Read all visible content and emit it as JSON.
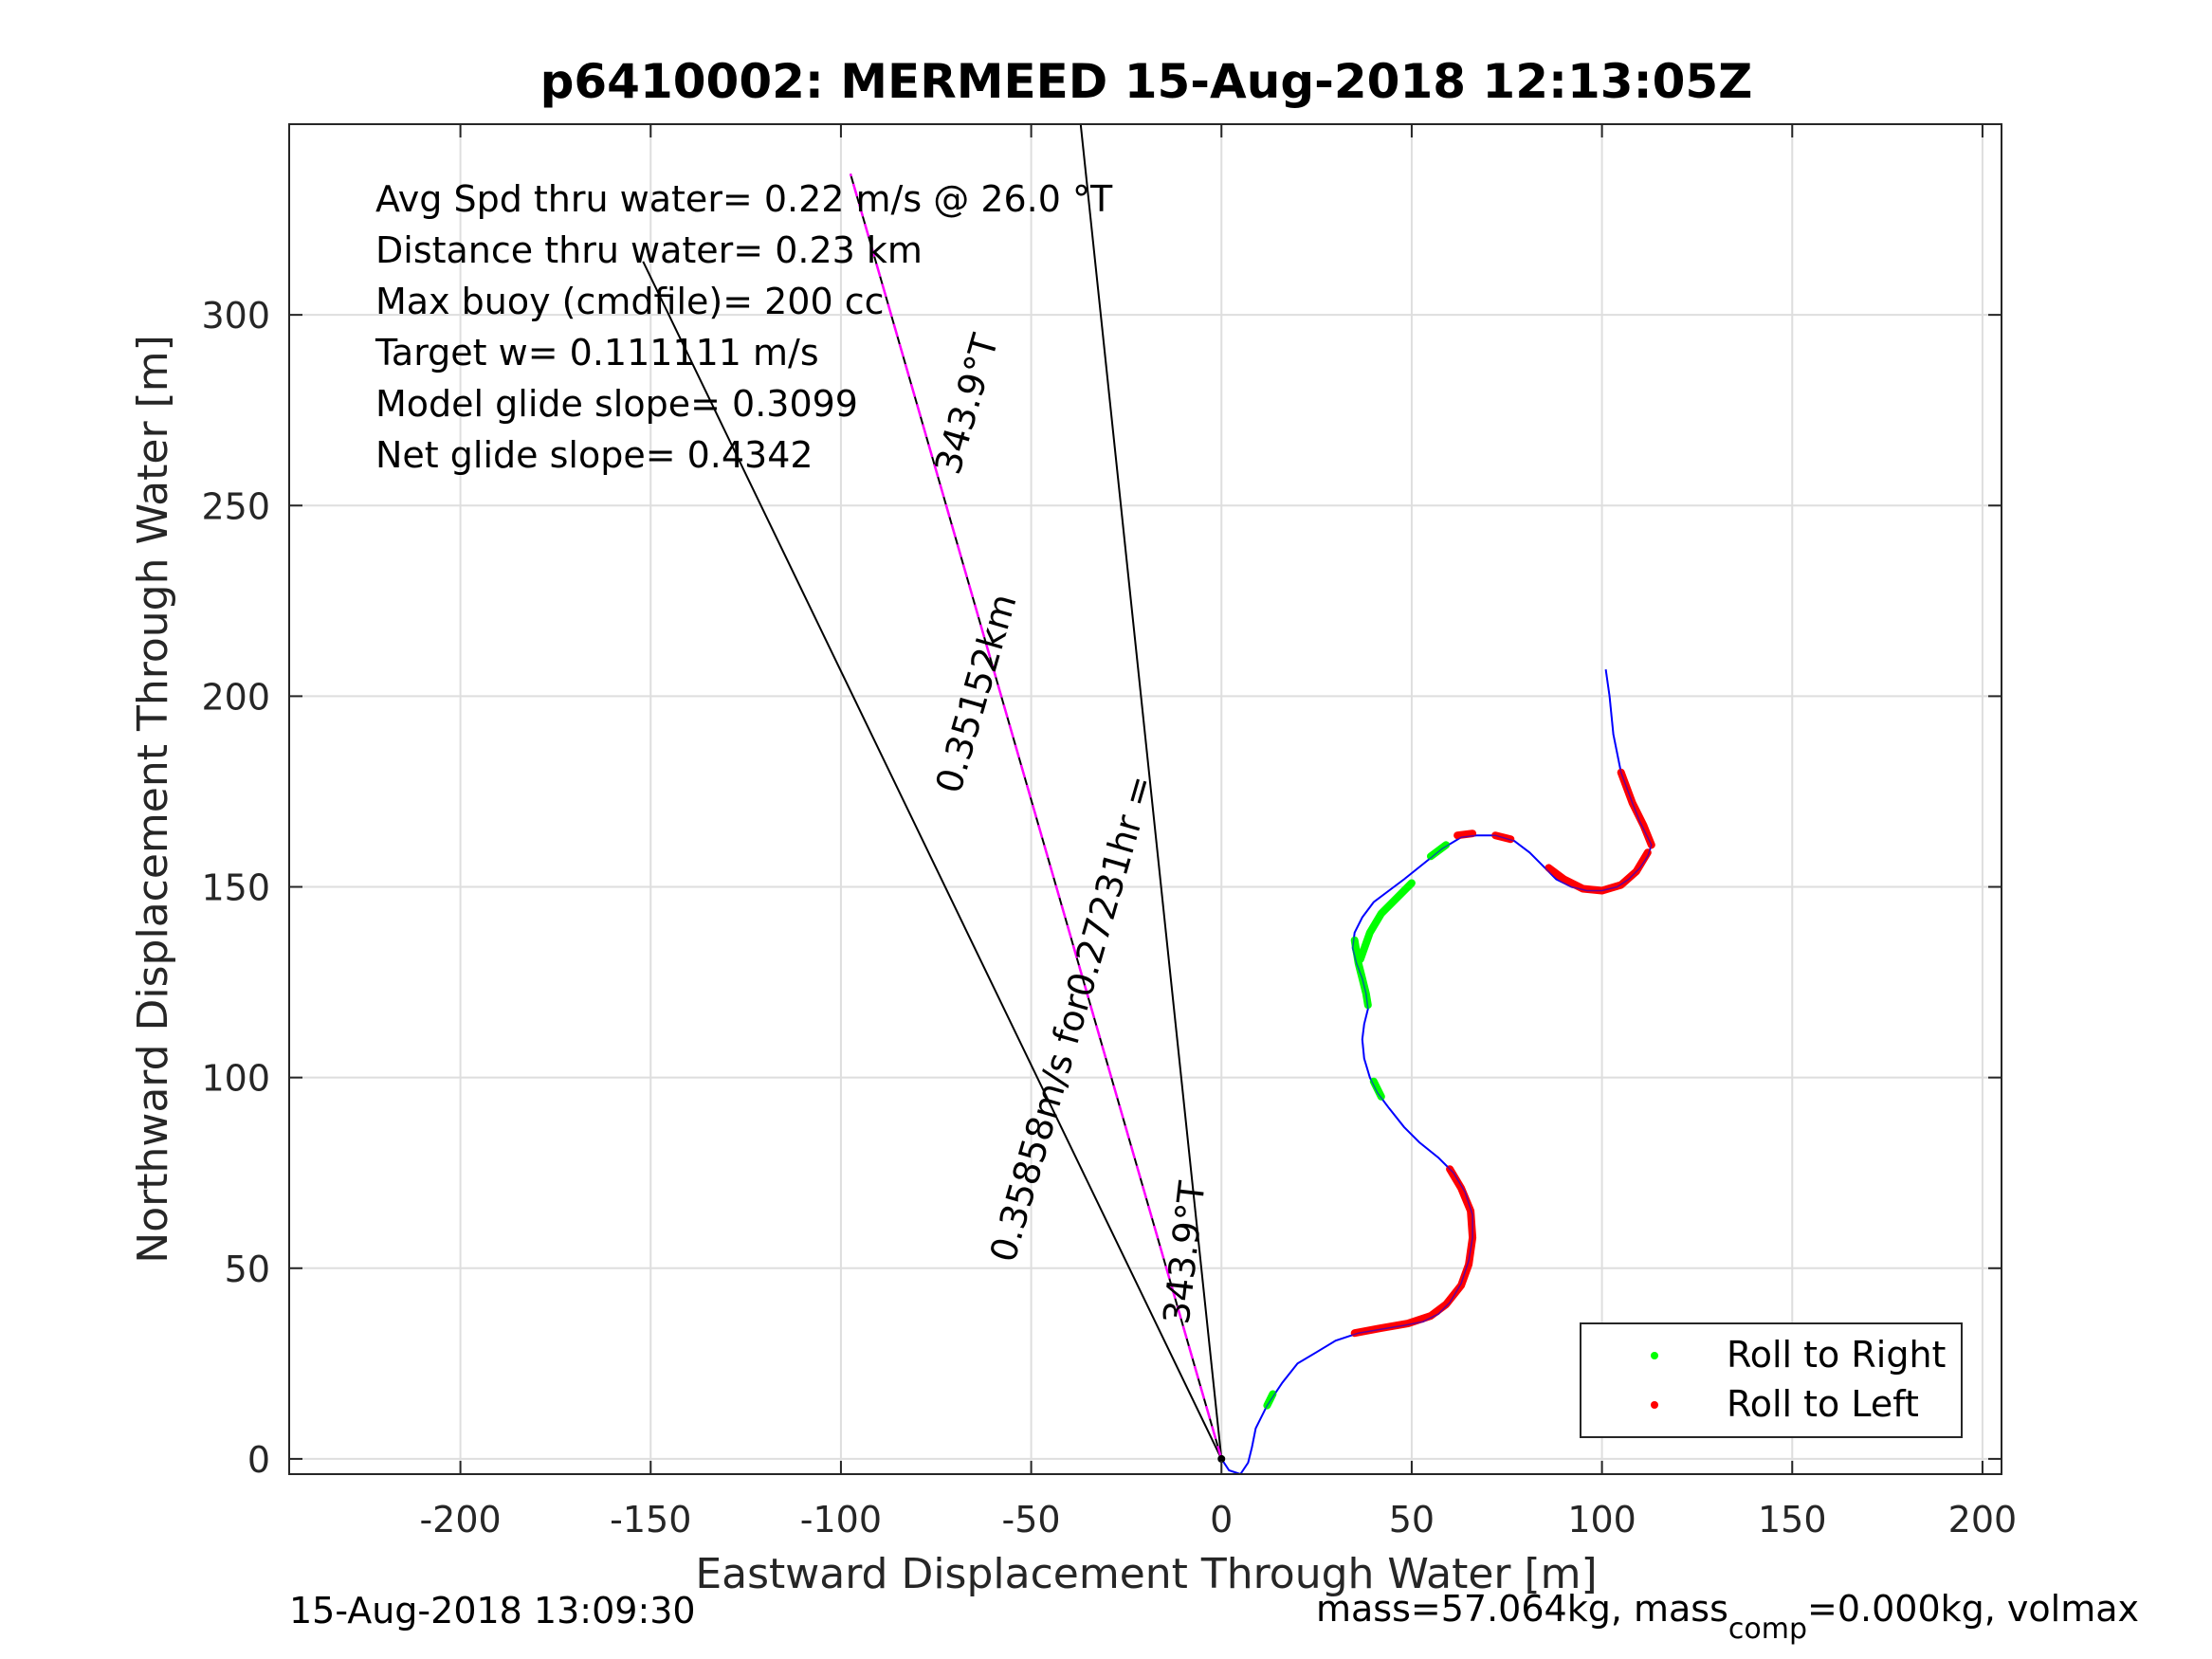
{
  "chart_data": {
    "type": "line",
    "title": "p6410002: MERMEED 15-Aug-2018 12:13:05Z",
    "xlabel": "Eastward Displacement Through Water [m]",
    "ylabel": "Northward Displacement Through Water [m]",
    "xlim": [
      -245,
      205
    ],
    "ylim": [
      -4,
      350
    ],
    "xticks": [
      -200,
      -150,
      -100,
      -50,
      0,
      50,
      100,
      150,
      200
    ],
    "yticks": [
      0,
      50,
      100,
      150,
      200,
      250,
      300
    ],
    "grid": true,
    "annotations": [
      "Avg Spd thru water=  0.22 m/s @  26.0 °T",
      "Distance thru water=  0.23 km",
      "Max buoy (cmdfile)= 200 cc",
      "Target w= 0.111111 m/s",
      "Model glide slope= 0.3099",
      "Net glide slope= 0.4342"
    ],
    "rotated_labels": {
      "heading_top": "343.9°T",
      "distance": "0.35152km",
      "speed_time": "0.35858m/s for0.27231hr =",
      "heading_bottom": "343.9°T"
    },
    "track": {
      "color": "#0000ff",
      "points": [
        [
          101,
          207
        ],
        [
          102,
          200
        ],
        [
          103,
          190
        ],
        [
          105,
          180
        ],
        [
          108,
          172
        ],
        [
          110,
          167
        ],
        [
          112,
          163
        ],
        [
          113,
          161
        ],
        [
          112,
          158
        ],
        [
          110,
          155
        ],
        [
          107,
          152
        ],
        [
          104,
          150
        ],
        [
          100,
          149
        ],
        [
          96,
          149
        ],
        [
          92,
          150
        ],
        [
          88,
          152
        ],
        [
          85,
          155
        ],
        [
          81,
          159
        ],
        [
          77,
          162
        ],
        [
          72,
          163.5
        ],
        [
          67,
          163.5
        ],
        [
          63,
          163
        ],
        [
          58,
          160
        ],
        [
          53,
          156
        ],
        [
          48,
          152
        ],
        [
          44,
          149
        ],
        [
          40,
          146
        ],
        [
          37,
          142
        ],
        [
          35,
          138
        ],
        [
          34.5,
          134
        ],
        [
          35.5,
          130
        ],
        [
          37,
          126
        ],
        [
          38,
          122
        ],
        [
          38.5,
          118
        ],
        [
          37.5,
          114
        ],
        [
          37,
          110
        ],
        [
          37.5,
          105
        ],
        [
          39,
          100
        ],
        [
          41,
          96
        ],
        [
          44,
          92
        ],
        [
          48,
          87
        ],
        [
          52,
          83
        ],
        [
          57,
          79
        ],
        [
          61,
          75
        ],
        [
          64,
          70
        ],
        [
          66,
          64
        ],
        [
          66,
          58
        ],
        [
          65,
          52
        ],
        [
          63,
          46
        ],
        [
          60,
          41
        ],
        [
          57,
          38
        ],
        [
          53,
          36
        ],
        [
          48,
          35
        ],
        [
          42,
          34
        ],
        [
          36,
          33
        ],
        [
          30,
          31
        ],
        [
          25,
          28
        ],
        [
          20,
          25
        ],
        [
          16,
          20
        ],
        [
          12,
          14
        ],
        [
          9,
          8
        ],
        [
          8,
          3
        ],
        [
          7,
          -1
        ],
        [
          5,
          -4
        ],
        [
          2,
          -3
        ],
        [
          0,
          0
        ]
      ]
    },
    "roll_right_segments": [
      [
        [
          12,
          14
        ],
        [
          13.5,
          17
        ]
      ],
      [
        [
          35,
          136
        ],
        [
          36,
          130
        ],
        [
          37,
          126
        ],
        [
          38,
          122
        ],
        [
          38.5,
          119
        ]
      ],
      [
        [
          36.5,
          131
        ],
        [
          39,
          138
        ],
        [
          42,
          143
        ],
        [
          46,
          147
        ],
        [
          50,
          151
        ]
      ],
      [
        [
          55,
          158
        ],
        [
          59,
          161
        ]
      ],
      [
        [
          40,
          99
        ],
        [
          42,
          95
        ]
      ]
    ],
    "roll_left_segments": [
      [
        [
          105,
          180
        ],
        [
          108,
          172
        ],
        [
          111,
          166
        ],
        [
          113,
          161
        ]
      ],
      [
        [
          86,
          155
        ],
        [
          90,
          152
        ],
        [
          95,
          149.5
        ],
        [
          100,
          149
        ],
        [
          105,
          150.5
        ],
        [
          109,
          154
        ],
        [
          112,
          159
        ]
      ],
      [
        [
          62,
          163.5
        ],
        [
          66,
          164
        ]
      ],
      [
        [
          72,
          163.5
        ],
        [
          76,
          162.5
        ]
      ],
      [
        [
          60,
          76
        ],
        [
          63,
          71
        ],
        [
          65.5,
          65
        ],
        [
          66,
          58
        ],
        [
          65,
          51
        ],
        [
          63,
          45.5
        ],
        [
          59,
          40.5
        ],
        [
          55,
          37.5
        ],
        [
          49,
          35.5
        ],
        [
          42,
          34.3
        ],
        [
          35,
          33
        ]
      ]
    ],
    "reference_lines": [
      {
        "color": "#000000",
        "from": [
          0,
          0
        ],
        "to": [
          -152,
          314
        ]
      },
      {
        "color": "#000000",
        "from": [
          0,
          0
        ],
        "to": [
          -37,
          350
        ]
      },
      {
        "color": "#000000",
        "from": [
          0,
          0
        ],
        "to": [
          -97.5,
          337
        ]
      },
      {
        "color": "#ff00ff",
        "from": [
          0,
          0
        ],
        "to": [
          -97.5,
          337
        ]
      }
    ],
    "legend": {
      "placement": "bottom-right",
      "entries": [
        {
          "label": "Roll to Right",
          "color": "#00ff00"
        },
        {
          "label": "Roll to Left",
          "color": "#ff0000"
        }
      ]
    }
  },
  "footer": {
    "left": "15-Aug-2018 13:09:30",
    "right_prefix": "mass=57.064kg, mass",
    "right_sub": "comp",
    "right_suffix": "=0.000kg, volmax"
  }
}
